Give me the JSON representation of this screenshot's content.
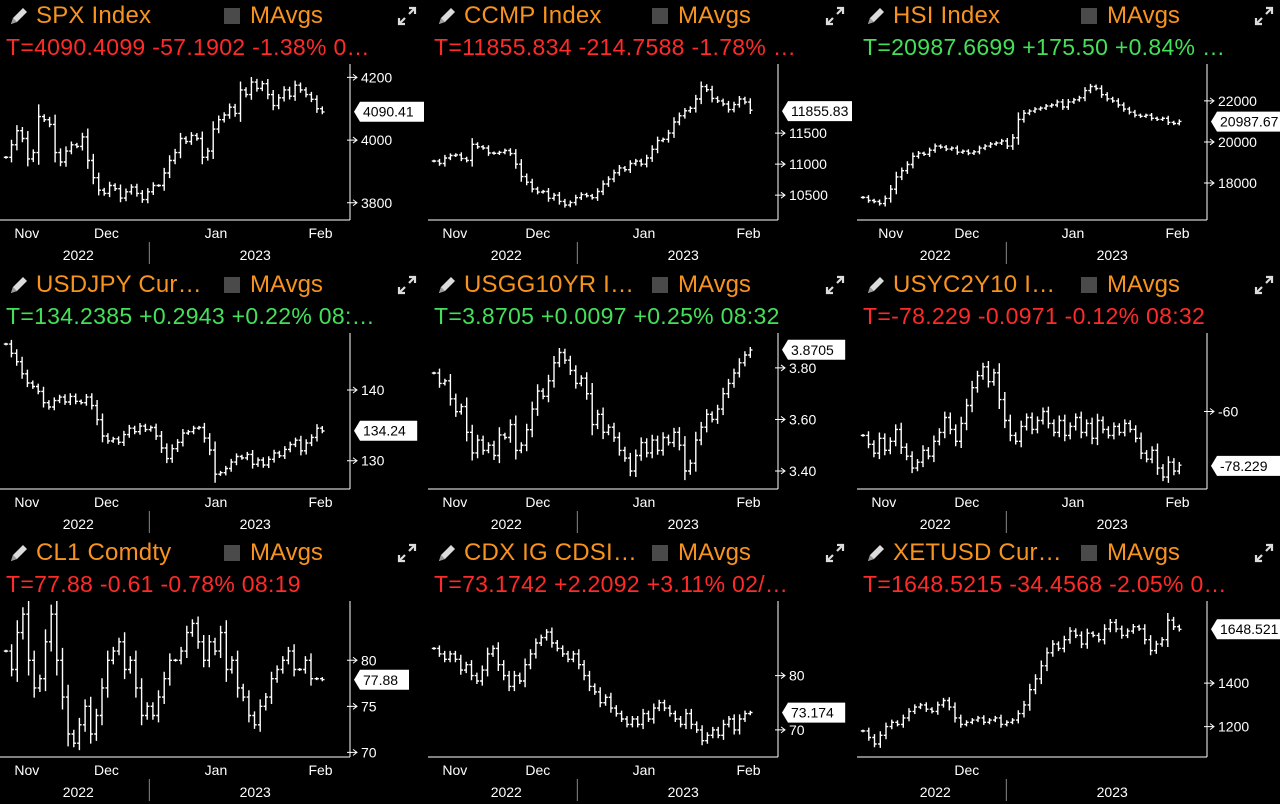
{
  "colors": {
    "background": "#000000",
    "title": "#f7931e",
    "up": "#44e05a",
    "down": "#ff2a2a",
    "line": "#ffffff",
    "axis": "#ffffff"
  },
  "icons": {
    "edit": "pencil-icon",
    "expand": "expand-arrows-icon",
    "toggle": "checkbox-icon"
  },
  "panels": [
    {
      "title": "SPX Index",
      "ma_label": "MAvgs",
      "quote": "T=4090.4099 -57.1902 -1.38% 0…",
      "direction": "down",
      "last_label": "4090.41",
      "last": 4090.41,
      "ymin": 3745,
      "ymax": 4230,
      "yticks": [
        "4200",
        "4000",
        "3800"
      ],
      "ytick_values": [
        4200,
        4000,
        3800
      ],
      "x_labels": [
        "Nov",
        "Dec",
        "Jan",
        "Feb"
      ],
      "x_pos": [
        0.03,
        0.26,
        0.58,
        0.88
      ],
      "years": [
        "2022",
        "2023"
      ],
      "year_sep": 0.42,
      "data_end": 0.92,
      "series": [
        3945,
        3985,
        4030,
        4005,
        3940,
        3960,
        4075,
        4065,
        4050,
        3960,
        3930,
        3965,
        3985,
        3980,
        4010,
        3935,
        3880,
        3840,
        3830,
        3855,
        3845,
        3815,
        3835,
        3850,
        3830,
        3810,
        3835,
        3855,
        3855,
        3895,
        3935,
        3960,
        4005,
        3995,
        4015,
        4005,
        3945,
        3965,
        4035,
        4065,
        4080,
        4105,
        4085,
        4160,
        4145,
        4185,
        4165,
        4180,
        4145,
        4110,
        4135,
        4160,
        4140,
        4175,
        4160,
        4145,
        4130,
        4100,
        4090
      ]
    },
    {
      "title": "CCMP Index",
      "ma_label": "MAvgs",
      "quote": "T=11855.834 -214.7588 -1.78% …",
      "direction": "down",
      "last_label": "11855.83",
      "last": 11855.83,
      "ymin": 10100,
      "ymax": 12550,
      "yticks": [
        "11500",
        "11000",
        "10500"
      ],
      "ytick_values": [
        11500,
        11000,
        10500
      ],
      "x_labels": [
        "Nov",
        "Dec",
        "Jan",
        "Feb"
      ],
      "x_pos": [
        0.03,
        0.27,
        0.58,
        0.88
      ],
      "years": [
        "2022",
        "2023"
      ],
      "year_sep": 0.42,
      "data_end": 0.92,
      "series": [
        11050,
        11010,
        11100,
        11140,
        11150,
        11090,
        11060,
        11320,
        11280,
        11260,
        11180,
        11175,
        11190,
        11220,
        11170,
        11000,
        10800,
        10710,
        10600,
        10550,
        10560,
        10450,
        10500,
        10400,
        10340,
        10380,
        10460,
        10510,
        10490,
        10460,
        10560,
        10680,
        10760,
        10860,
        10940,
        10910,
        11010,
        11050,
        11000,
        11100,
        11240,
        11380,
        11400,
        11500,
        11680,
        11780,
        11860,
        11900,
        12050,
        12250,
        12200,
        12060,
        12020,
        11970,
        11880,
        11960,
        12050,
        12000,
        11870
      ]
    },
    {
      "title": "HSI Index",
      "ma_label": "MAvgs",
      "quote": "T=20987.6699 +175.50 +0.84% …",
      "direction": "up",
      "last_label": "20987.67",
      "last": 20987.67,
      "ymin": 16200,
      "ymax": 23600,
      "yticks": [
        "22000",
        "20000",
        "18000"
      ],
      "ytick_values": [
        22000,
        20000,
        18000
      ],
      "x_labels": [
        "Nov",
        "Dec",
        "Jan",
        "Feb"
      ],
      "x_pos": [
        0.05,
        0.27,
        0.58,
        0.88
      ],
      "years": [
        "2022",
        "2023"
      ],
      "year_sep": 0.42,
      "data_end": 0.92,
      "series": [
        17300,
        17150,
        17100,
        17000,
        17250,
        17700,
        18300,
        18600,
        18900,
        19300,
        19450,
        19400,
        19600,
        19800,
        19750,
        19650,
        19700,
        19500,
        19550,
        19450,
        19520,
        19700,
        19800,
        19900,
        19950,
        20050,
        19800,
        20200,
        21100,
        21400,
        21500,
        21600,
        21650,
        21750,
        21800,
        21950,
        21700,
        21950,
        22050,
        22150,
        22500,
        22700,
        22600,
        22300,
        22100,
        22000,
        21800,
        21600,
        21450,
        21300,
        21250,
        21300,
        21150,
        21100,
        21150,
        20950,
        20900,
        21000
      ]
    },
    {
      "title": "USDJPY Cur…",
      "ma_label": "MAvgs",
      "quote": "T=134.2385 +0.2943 +0.22% 08:…",
      "direction": "up",
      "last_label": "134.24",
      "last": 134.24,
      "ymin": 126,
      "ymax": 147.5,
      "yticks": [
        "140",
        "130"
      ],
      "ytick_values": [
        140,
        130
      ],
      "x_labels": [
        "Nov",
        "Dec",
        "Jan",
        "Feb"
      ],
      "x_pos": [
        0.03,
        0.26,
        0.58,
        0.88
      ],
      "years": [
        "2022",
        "2023"
      ],
      "year_sep": 0.42,
      "data_end": 0.92,
      "series": [
        146.5,
        145.2,
        144.0,
        142.3,
        141.0,
        140.5,
        139.8,
        138.2,
        137.6,
        138.5,
        139.0,
        138.3,
        139.1,
        138.4,
        138.2,
        139.0,
        137.8,
        135.8,
        133.5,
        132.8,
        133.1,
        132.6,
        133.7,
        134.6,
        134.1,
        134.9,
        134.4,
        134.7,
        133.5,
        131.8,
        130.3,
        131.7,
        132.6,
        133.9,
        134.1,
        134.6,
        134.7,
        133.2,
        131.5,
        128.1,
        128.3,
        128.9,
        129.8,
        130.6,
        130.4,
        130.9,
        129.5,
        130.1,
        129.4,
        130.2,
        131.1,
        130.7,
        131.6,
        132.3,
        132.9,
        131.4,
        132.5,
        133.3,
        134.6,
        134.2
      ]
    },
    {
      "title": "USGG10YR I…",
      "ma_label": "MAvgs",
      "quote": "T=3.8705 +0.0097 +0.25% 08:32",
      "direction": "up",
      "last_label": "3.8705",
      "last": 3.8705,
      "ymin": 3.33,
      "ymax": 3.92,
      "yticks": [
        "3.80",
        "3.60",
        "3.40"
      ],
      "ytick_values": [
        3.8,
        3.6,
        3.4
      ],
      "x_labels": [
        "Nov",
        "Dec",
        "Jan",
        "Feb"
      ],
      "x_pos": [
        0.03,
        0.27,
        0.58,
        0.88
      ],
      "years": [
        "2022",
        "2023"
      ],
      "year_sep": 0.42,
      "data_end": 0.92,
      "series": [
        3.78,
        3.74,
        3.75,
        3.68,
        3.63,
        3.65,
        3.55,
        3.47,
        3.52,
        3.48,
        3.5,
        3.46,
        3.54,
        3.53,
        3.58,
        3.48,
        3.5,
        3.56,
        3.64,
        3.71,
        3.69,
        3.75,
        3.82,
        3.86,
        3.83,
        3.79,
        3.74,
        3.76,
        3.7,
        3.58,
        3.62,
        3.55,
        3.57,
        3.53,
        3.48,
        3.45,
        3.4,
        3.46,
        3.51,
        3.47,
        3.52,
        3.48,
        3.53,
        3.51,
        3.55,
        3.5,
        3.4,
        3.43,
        3.52,
        3.57,
        3.62,
        3.6,
        3.64,
        3.7,
        3.74,
        3.78,
        3.82,
        3.85,
        3.87
      ]
    },
    {
      "title": "USYC2Y10 I…",
      "ma_label": "MAvgs",
      "quote": "T=-78.229 -0.0971 -0.12% 08:32",
      "direction": "down",
      "last_label": "-78.229",
      "last": -78.229,
      "ymin": -86,
      "ymax": -35,
      "yticks": [
        "-60"
      ],
      "ytick_values": [
        -60
      ],
      "x_labels": [
        "Nov",
        "Dec",
        "Jan",
        "Feb"
      ],
      "x_pos": [
        0.03,
        0.27,
        0.58,
        0.88
      ],
      "years": [
        "2022",
        "2023"
      ],
      "year_sep": 0.42,
      "data_end": 0.92,
      "series": [
        -68,
        -71,
        -74,
        -69,
        -73,
        -70,
        -66,
        -72,
        -75,
        -79,
        -77,
        -73,
        -75,
        -70,
        -67,
        -62,
        -66,
        -70,
        -64,
        -58,
        -52,
        -48,
        -45,
        -50,
        -47,
        -56,
        -63,
        -68,
        -70,
        -65,
        -62,
        -66,
        -63,
        -60,
        -64,
        -67,
        -63,
        -68,
        -65,
        -62,
        -67,
        -64,
        -69,
        -63,
        -66,
        -68,
        -65,
        -67,
        -64,
        -66,
        -69,
        -74,
        -76,
        -73,
        -79,
        -82,
        -77,
        -80,
        -78
      ]
    },
    {
      "title": "CL1 Comdty",
      "ma_label": "MAvgs",
      "quote": "T=77.88 -0.61 -0.78% 08:19",
      "direction": "down",
      "last_label": "77.88",
      "last": 77.88,
      "ymin": 69.5,
      "ymax": 86,
      "yticks": [
        "80",
        "75",
        "70"
      ],
      "ytick_values": [
        80,
        75,
        70
      ],
      "x_labels": [
        "Nov",
        "Dec",
        "Jan",
        "Feb"
      ],
      "x_pos": [
        0.03,
        0.26,
        0.58,
        0.88
      ],
      "years": [
        "2022",
        "2023"
      ],
      "year_sep": 0.42,
      "data_end": 0.92,
      "series": [
        81,
        79,
        83,
        85,
        80,
        77,
        78,
        82,
        85,
        80,
        76,
        72,
        71,
        73,
        75,
        72,
        74,
        77,
        80,
        81,
        82,
        79,
        80,
        77,
        74,
        75,
        74,
        76,
        78,
        80,
        80,
        81,
        83,
        84,
        82,
        80,
        82,
        81,
        83,
        79,
        80,
        77,
        76,
        74,
        73,
        75,
        76,
        78,
        79,
        80,
        81,
        79,
        79,
        80,
        78,
        78,
        77.9
      ]
    },
    {
      "title": "CDX IG CDSI…",
      "ma_label": "MAvgs",
      "quote": "T=73.1742 +2.2092 +3.11% 02/…",
      "direction": "down",
      "last_label": "73.174",
      "last": 73.174,
      "ymin": 65,
      "ymax": 93,
      "yticks": [
        "80",
        "70"
      ],
      "ytick_values": [
        80,
        70
      ],
      "x_labels": [
        "Nov",
        "Dec",
        "Jan",
        "Feb"
      ],
      "x_pos": [
        0.03,
        0.27,
        0.58,
        0.88
      ],
      "years": [
        "2022",
        "2023"
      ],
      "year_sep": 0.42,
      "data_end": 0.92,
      "series": [
        85,
        84,
        83,
        84,
        83,
        81,
        82,
        80,
        79,
        81,
        84,
        85,
        82,
        80,
        78,
        80,
        79,
        82,
        84,
        86,
        87,
        88,
        86,
        85,
        84,
        83,
        84,
        82,
        80,
        78,
        77,
        75,
        76,
        74,
        73,
        72,
        71,
        72,
        71,
        73,
        72,
        74,
        75,
        74,
        73,
        72,
        71,
        73,
        71,
        70,
        68,
        69,
        70,
        69,
        71,
        72,
        70,
        72,
        73,
        73.2
      ]
    },
    {
      "title": "XETUSD Cur…",
      "ma_label": "MAvgs",
      "quote": "T=1648.5215 -34.4568 -2.05% 0…",
      "direction": "down",
      "last_label": "1648.521",
      "last": 1648.521,
      "ymin": 1060,
      "ymax": 1760,
      "yticks": [
        "1400",
        "1200"
      ],
      "ytick_values": [
        1400,
        1200
      ],
      "x_labels": [
        "Dec"
      ],
      "x_pos": [
        0.27
      ],
      "years": [
        "2022",
        "2023"
      ],
      "year_sep": 0.42,
      "data_end": 0.92,
      "series": [
        1180,
        1150,
        1120,
        1160,
        1200,
        1220,
        1210,
        1240,
        1270,
        1290,
        1300,
        1280,
        1270,
        1300,
        1320,
        1290,
        1240,
        1210,
        1220,
        1230,
        1240,
        1220,
        1230,
        1240,
        1210,
        1220,
        1230,
        1260,
        1300,
        1370,
        1420,
        1480,
        1540,
        1580,
        1560,
        1600,
        1640,
        1620,
        1580,
        1630,
        1620,
        1600,
        1650,
        1680,
        1650,
        1620,
        1640,
        1660,
        1650,
        1600,
        1550,
        1580,
        1600,
        1690,
        1660,
        1648
      ]
    }
  ]
}
